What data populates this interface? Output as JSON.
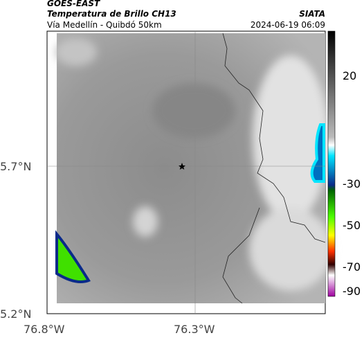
{
  "header": {
    "product": "GOES-EAST",
    "title": "Temperatura de Brillo CH13",
    "subtitle": "Vía Medellín - Quibdó 50km",
    "source": "SIATA",
    "datetime": "2024-06-19 06:09"
  },
  "map": {
    "lat_labels": [
      "5.7°N",
      "5.2°N"
    ],
    "lon_labels": [
      "76.8°W",
      "76.3°W"
    ]
  },
  "colorbar": {
    "labels": [
      "20",
      "-30",
      "-50",
      "-70",
      "-90"
    ]
  }
}
